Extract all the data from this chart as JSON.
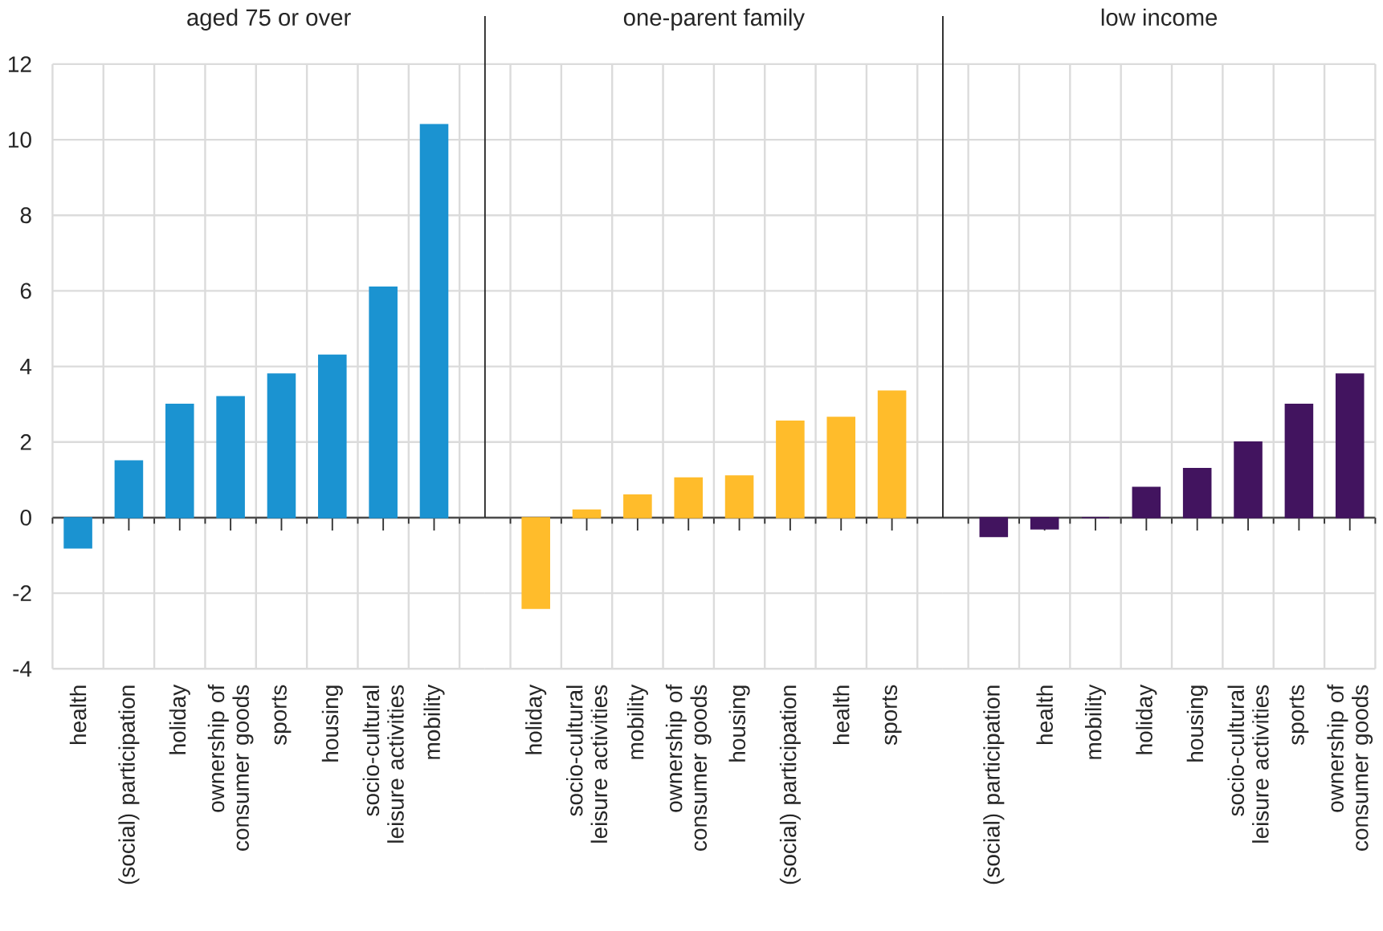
{
  "chart_data": [
    {
      "type": "bar",
      "title": "aged 75 or over",
      "categories": [
        "health",
        "(social) participation",
        "holiday",
        "ownership of consumer goods",
        "sports",
        "housing",
        "socio-cultural leisure activities",
        "mobility"
      ],
      "values": [
        -0.8,
        1.5,
        3.0,
        3.2,
        3.8,
        4.3,
        6.1,
        10.4
      ],
      "color": "#1b93d1",
      "ylim": [
        -4,
        12
      ],
      "yticks": [
        -4,
        -2,
        0,
        2,
        4,
        6,
        8,
        10,
        12
      ],
      "grid": true
    },
    {
      "type": "bar",
      "title": "one-parent family",
      "categories": [
        "holiday",
        "socio-cultural leisure activities",
        "mobility",
        "ownership of consumer goods",
        "housing",
        "(social) participation",
        "health",
        "sports"
      ],
      "values": [
        -2.4,
        0.2,
        0.6,
        1.05,
        1.1,
        2.55,
        2.65,
        3.35
      ],
      "color": "#ffbc2b",
      "ylim": [
        -4,
        12
      ],
      "yticks": [
        -4,
        -2,
        0,
        2,
        4,
        6,
        8,
        10,
        12
      ],
      "grid": true,
      "tick_labels": "x"
    },
    {
      "type": "bar",
      "title": "low income",
      "categories": [
        "(social) participation",
        "health",
        "mobility",
        "holiday",
        "housing",
        "socio-cultural leisure activities",
        "sports",
        "ownership of consumer goods"
      ],
      "values": [
        -0.5,
        -0.3,
        0.0,
        0.8,
        1.3,
        2.0,
        3.0,
        3.8
      ],
      "color": "#42145f",
      "ylim": [
        -4,
        12
      ],
      "yticks": [
        -4,
        -2,
        0,
        2,
        4,
        6,
        8,
        10,
        12
      ],
      "grid": true,
      "tick_labels": "x"
    }
  ]
}
